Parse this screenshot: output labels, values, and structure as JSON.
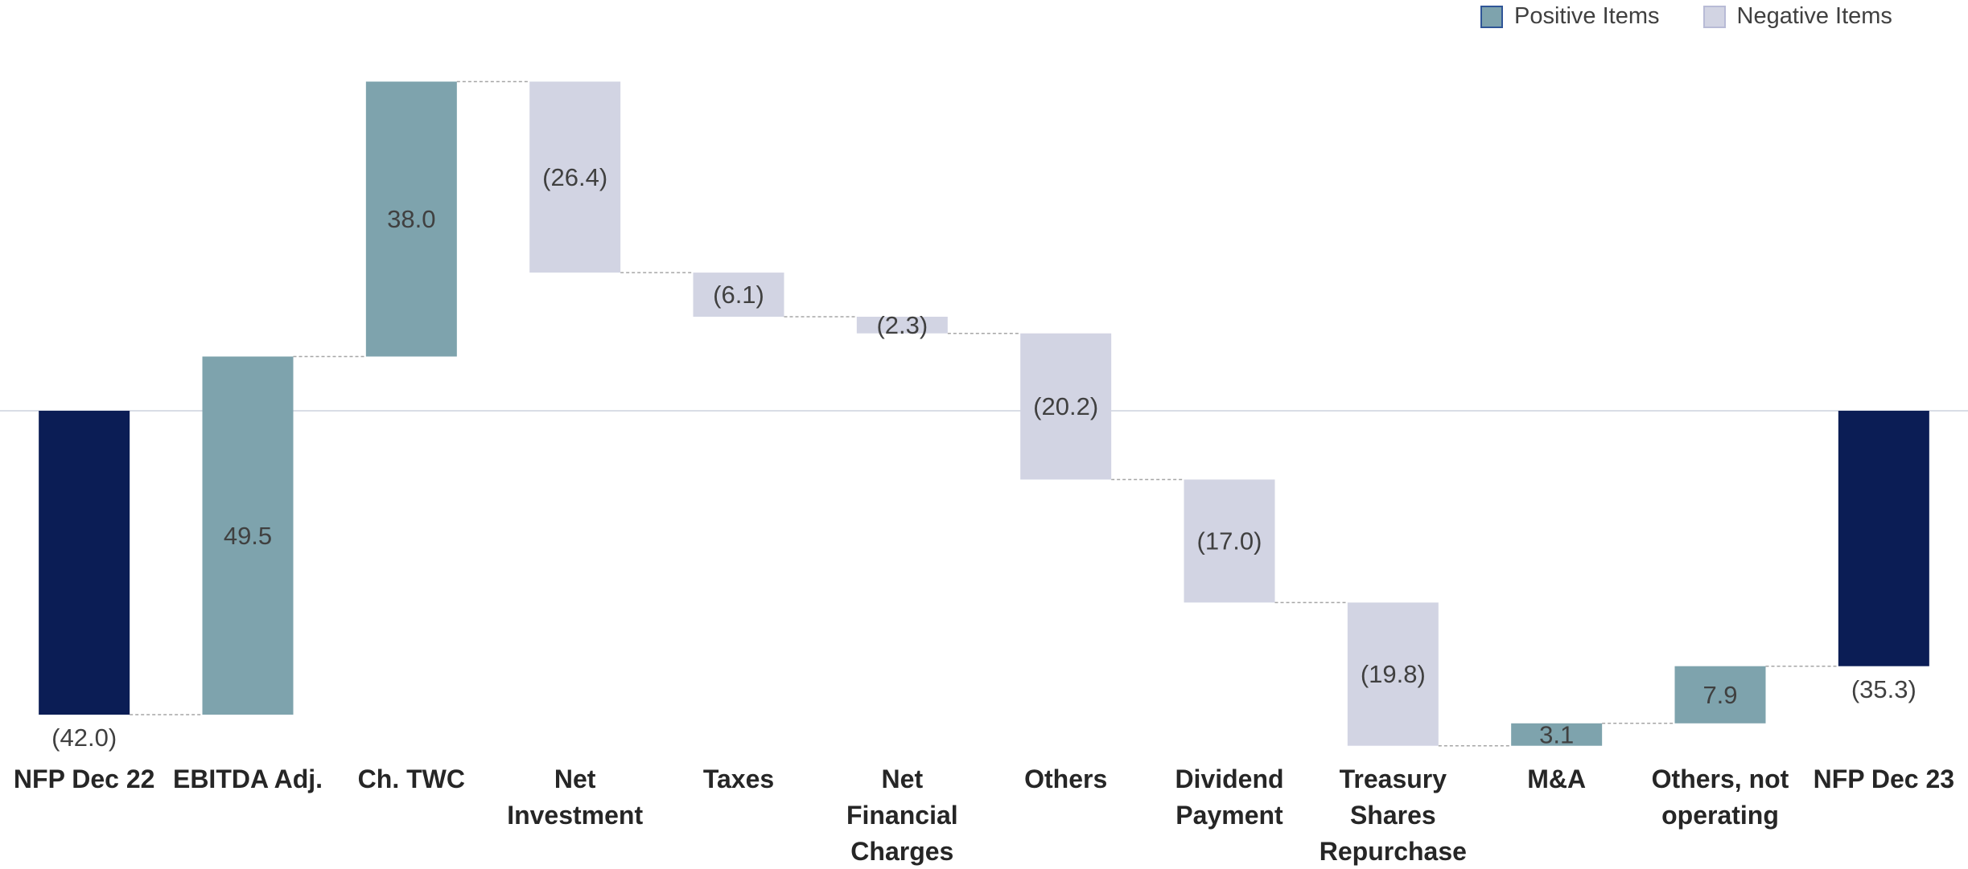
{
  "legend": {
    "positive_label": "Positive Items",
    "negative_label": "Negative Items"
  },
  "colors": {
    "total": "#0b1d55",
    "positive": "#7ea3ad",
    "negative": "#d2d4e3",
    "connector": "#a6a6a6",
    "baseline": "#d9dde6",
    "label_text": "#404040",
    "category_text": "#262626"
  },
  "chart_data": {
    "type": "waterfall",
    "ylim": [
      -46,
      52
    ],
    "grid": false,
    "legend_position": "top-right",
    "categories": [
      [
        "NFP Dec 22"
      ],
      [
        "EBITDA Adj."
      ],
      [
        "Ch. TWC"
      ],
      [
        "Net",
        "Investment"
      ],
      [
        "Taxes"
      ],
      [
        "Net",
        "Financial",
        "Charges"
      ],
      [
        "Others"
      ],
      [
        "Dividend",
        "Payment"
      ],
      [
        "Treasury",
        "Shares",
        "Repurchase"
      ],
      [
        "M&A"
      ],
      [
        "Others, not",
        "operating"
      ],
      [
        "NFP Dec 23"
      ]
    ],
    "bars": [
      {
        "kind": "total",
        "value": -42.0,
        "label": "(42.0)"
      },
      {
        "kind": "positive",
        "value": 49.5,
        "label": "49.5"
      },
      {
        "kind": "positive",
        "value": 38.0,
        "label": "38.0"
      },
      {
        "kind": "negative",
        "value": -26.4,
        "label": "(26.4)"
      },
      {
        "kind": "negative",
        "value": -6.1,
        "label": "(6.1)"
      },
      {
        "kind": "negative",
        "value": -2.3,
        "label": "(2.3)"
      },
      {
        "kind": "negative",
        "value": -20.2,
        "label": "(20.2)"
      },
      {
        "kind": "negative",
        "value": -17.0,
        "label": "(17.0)"
      },
      {
        "kind": "negative",
        "value": -19.8,
        "label": "(19.8)"
      },
      {
        "kind": "positive",
        "value": 3.1,
        "label": "3.1"
      },
      {
        "kind": "positive",
        "value": 7.9,
        "label": "7.9"
      },
      {
        "kind": "total",
        "value": -35.3,
        "label": "(35.3)"
      }
    ]
  }
}
